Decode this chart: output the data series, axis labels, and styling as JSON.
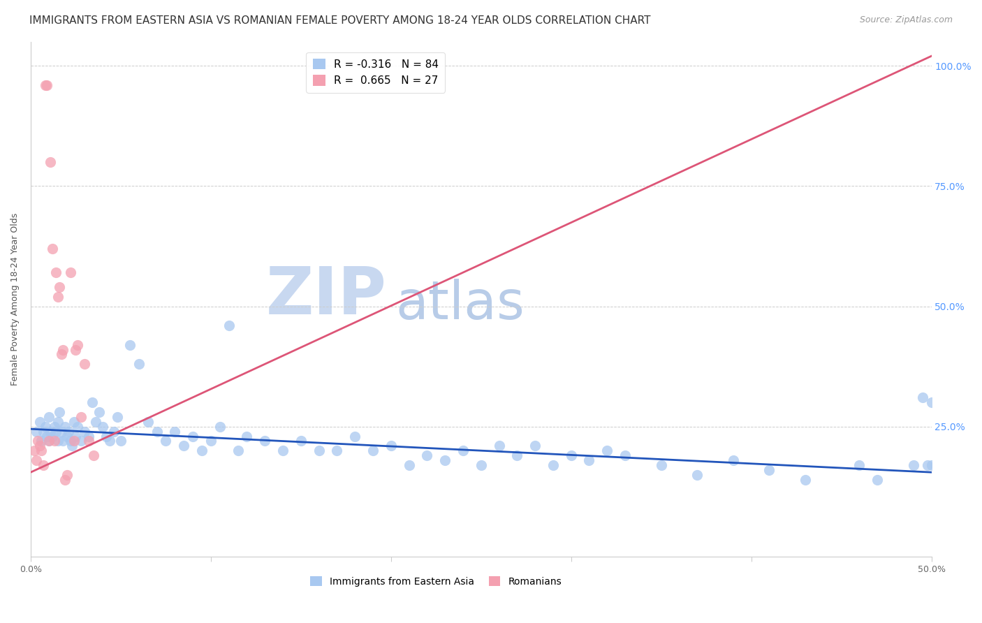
{
  "title": "IMMIGRANTS FROM EASTERN ASIA VS ROMANIAN FEMALE POVERTY AMONG 18-24 YEAR OLDS CORRELATION CHART",
  "source": "Source: ZipAtlas.com",
  "ylabel": "Female Poverty Among 18-24 Year Olds",
  "xlim": [
    0.0,
    0.5
  ],
  "ylim": [
    -0.02,
    1.05
  ],
  "xticks": [
    0.0,
    0.1,
    0.2,
    0.3,
    0.4,
    0.5
  ],
  "xticklabels": [
    "0.0%",
    "",
    "",
    "",
    "",
    "50.0%"
  ],
  "yticks_right": [
    0.25,
    0.5,
    0.75,
    1.0
  ],
  "ytickslabels_right": [
    "25.0%",
    "50.0%",
    "75.0%",
    "100.0%"
  ],
  "blue_color": "#a8c8f0",
  "pink_color": "#f4a0b0",
  "blue_line_color": "#2255bb",
  "pink_line_color": "#dd5577",
  "watermark_zip_color": "#c8d8f0",
  "watermark_atlas_color": "#b8cce8",
  "legend_r_blue": "R = -0.316",
  "legend_n_blue": "N = 84",
  "legend_r_pink": "R =  0.665",
  "legend_n_pink": "N = 27",
  "blue_scatter_x": [
    0.003,
    0.005,
    0.006,
    0.007,
    0.008,
    0.009,
    0.01,
    0.01,
    0.011,
    0.012,
    0.013,
    0.014,
    0.015,
    0.015,
    0.016,
    0.017,
    0.018,
    0.019,
    0.02,
    0.021,
    0.022,
    0.023,
    0.024,
    0.025,
    0.026,
    0.028,
    0.03,
    0.032,
    0.034,
    0.036,
    0.038,
    0.04,
    0.042,
    0.044,
    0.046,
    0.048,
    0.05,
    0.055,
    0.06,
    0.065,
    0.07,
    0.075,
    0.08,
    0.085,
    0.09,
    0.095,
    0.1,
    0.105,
    0.11,
    0.115,
    0.12,
    0.13,
    0.14,
    0.15,
    0.16,
    0.17,
    0.18,
    0.19,
    0.2,
    0.21,
    0.22,
    0.23,
    0.24,
    0.25,
    0.26,
    0.27,
    0.28,
    0.29,
    0.3,
    0.31,
    0.32,
    0.33,
    0.35,
    0.37,
    0.39,
    0.41,
    0.43,
    0.46,
    0.47,
    0.49,
    0.495,
    0.498,
    0.5,
    0.5
  ],
  "blue_scatter_y": [
    0.24,
    0.26,
    0.22,
    0.24,
    0.25,
    0.23,
    0.22,
    0.27,
    0.24,
    0.23,
    0.25,
    0.24,
    0.22,
    0.26,
    0.28,
    0.24,
    0.22,
    0.25,
    0.23,
    0.24,
    0.22,
    0.21,
    0.26,
    0.23,
    0.25,
    0.22,
    0.24,
    0.23,
    0.3,
    0.26,
    0.28,
    0.25,
    0.23,
    0.22,
    0.24,
    0.27,
    0.22,
    0.42,
    0.38,
    0.26,
    0.24,
    0.22,
    0.24,
    0.21,
    0.23,
    0.2,
    0.22,
    0.25,
    0.46,
    0.2,
    0.23,
    0.22,
    0.2,
    0.22,
    0.2,
    0.2,
    0.23,
    0.2,
    0.21,
    0.17,
    0.19,
    0.18,
    0.2,
    0.17,
    0.21,
    0.19,
    0.21,
    0.17,
    0.19,
    0.18,
    0.2,
    0.19,
    0.17,
    0.15,
    0.18,
    0.16,
    0.14,
    0.17,
    0.14,
    0.17,
    0.31,
    0.17,
    0.3,
    0.17
  ],
  "pink_scatter_x": [
    0.002,
    0.003,
    0.004,
    0.005,
    0.006,
    0.007,
    0.008,
    0.009,
    0.01,
    0.011,
    0.012,
    0.013,
    0.014,
    0.015,
    0.016,
    0.017,
    0.018,
    0.019,
    0.02,
    0.022,
    0.024,
    0.025,
    0.026,
    0.028,
    0.03,
    0.032,
    0.035
  ],
  "pink_scatter_y": [
    0.2,
    0.18,
    0.22,
    0.21,
    0.2,
    0.17,
    0.96,
    0.96,
    0.22,
    0.8,
    0.62,
    0.22,
    0.57,
    0.52,
    0.54,
    0.4,
    0.41,
    0.14,
    0.15,
    0.57,
    0.22,
    0.41,
    0.42,
    0.27,
    0.38,
    0.22,
    0.19
  ],
  "blue_trend_x": [
    0.0,
    0.5
  ],
  "blue_trend_y": [
    0.245,
    0.155
  ],
  "pink_trend_x": [
    0.0,
    0.5
  ],
  "pink_trend_y": [
    0.155,
    1.02
  ],
  "title_fontsize": 11,
  "source_fontsize": 9,
  "label_fontsize": 9,
  "legend_fontsize": 11,
  "watermark_zip_fontsize": 68,
  "watermark_atlas_fontsize": 55
}
